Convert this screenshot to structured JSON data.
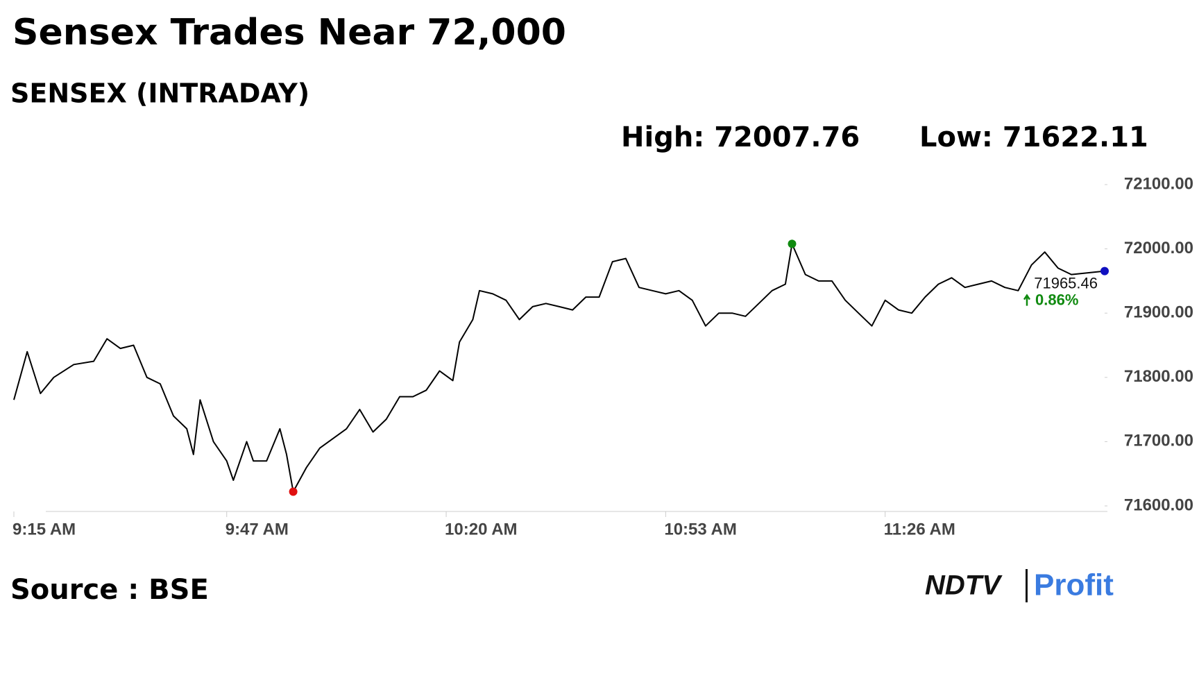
{
  "chart_data": {
    "type": "line",
    "title": "Sensex Trades Near 72,000",
    "subtitle": "SENSEX (INTRADAY)",
    "high_text": "High: 72007.76",
    "low_text": "Low: 71622.11",
    "last_value_label": "71965.46",
    "change_label": "0.86%",
    "source": "Source : BSE",
    "logo": {
      "left": "NDTV",
      "right": "Profit"
    },
    "color": "#000000",
    "high_color": "#108a10",
    "low_color": "#e01010",
    "last_color": "#1010c0",
    "change_color": "#108a10",
    "x": [
      "9:15 AM",
      "9:17 AM",
      "9:19 AM",
      "9:21 AM",
      "9:24 AM",
      "9:27 AM",
      "9:29 AM",
      "9:31 AM",
      "9:33 AM",
      "9:35 AM",
      "9:37 AM",
      "9:39 AM",
      "9:41 AM",
      "9:42 AM",
      "9:43 AM",
      "9:45 AM",
      "9:47 AM",
      "9:48 AM",
      "9:50 AM",
      "9:51 AM",
      "9:53 AM",
      "9:55 AM",
      "9:56 AM",
      "9:57 AM",
      "9:59 AM",
      "10:01 AM",
      "10:03 AM",
      "10:05 AM",
      "10:07 AM",
      "10:09 AM",
      "10:11 AM",
      "10:13 AM",
      "10:15 AM",
      "10:17 AM",
      "10:19 AM",
      "10:21 AM",
      "10:22 AM",
      "10:24 AM",
      "10:25 AM",
      "10:27 AM",
      "10:29 AM",
      "10:31 AM",
      "10:33 AM",
      "10:35 AM",
      "10:37 AM",
      "10:39 AM",
      "10:41 AM",
      "10:43 AM",
      "10:45 AM",
      "10:47 AM",
      "10:49 AM",
      "10:51 AM",
      "10:53 AM",
      "10:55 AM",
      "10:57 AM",
      "10:59 AM",
      "11:01 AM",
      "11:03 AM",
      "11:05 AM",
      "11:07 AM",
      "11:09 AM",
      "11:11 AM",
      "11:12 AM",
      "11:14 AM",
      "11:16 AM",
      "11:18 AM",
      "11:20 AM",
      "11:22 AM",
      "11:24 AM",
      "11:26 AM",
      "11:28 AM",
      "11:30 AM",
      "11:32 AM",
      "11:34 AM",
      "11:36 AM",
      "11:38 AM",
      "11:40 AM",
      "11:42 AM",
      "11:44 AM",
      "11:46 AM",
      "11:48 AM",
      "11:50 AM",
      "11:52 AM",
      "11:54 AM",
      "11:59 AM"
    ],
    "values": [
      71765,
      71840,
      71775,
      71800,
      71820,
      71825,
      71860,
      71845,
      71850,
      71800,
      71790,
      71740,
      71720,
      71680,
      71765,
      71700,
      71670,
      71640,
      71700,
      71670,
      71670,
      71720,
      71680,
      71622.11,
      71660,
      71690,
      71705,
      71720,
      71750,
      71715,
      71735,
      71770,
      71770,
      71780,
      71810,
      71795,
      71855,
      71890,
      71935,
      71930,
      71920,
      71890,
      71910,
      71915,
      71910,
      71905,
      71925,
      71925,
      71980,
      71985,
      71940,
      71935,
      71930,
      71935,
      71920,
      71880,
      71900,
      71900,
      71895,
      71915,
      71935,
      71945,
      72007.76,
      71960,
      71950,
      71950,
      71920,
      71900,
      71880,
      71920,
      71905,
      71900,
      71925,
      71945,
      71955,
      71940,
      71945,
      71950,
      71940,
      71935,
      71975,
      71995,
      71970,
      71960,
      71965.46
    ],
    "xlim": [
      "9:15 AM",
      "11:59 AM"
    ],
    "xticks": [
      "9:15 AM",
      "9:47 AM",
      "10:20 AM",
      "10:53 AM",
      "11:26 AM"
    ],
    "ylim": [
      71600,
      72100
    ],
    "yticks": [
      {
        "value": 71600,
        "label": "71600.00"
      },
      {
        "value": 71700,
        "label": "71700.00"
      },
      {
        "value": 71800,
        "label": "71800.00"
      },
      {
        "value": 71900,
        "label": "71900.00"
      },
      {
        "value": 72000,
        "label": "72000.00"
      },
      {
        "value": 72100,
        "label": "72100.00"
      }
    ],
    "grid": false
  }
}
